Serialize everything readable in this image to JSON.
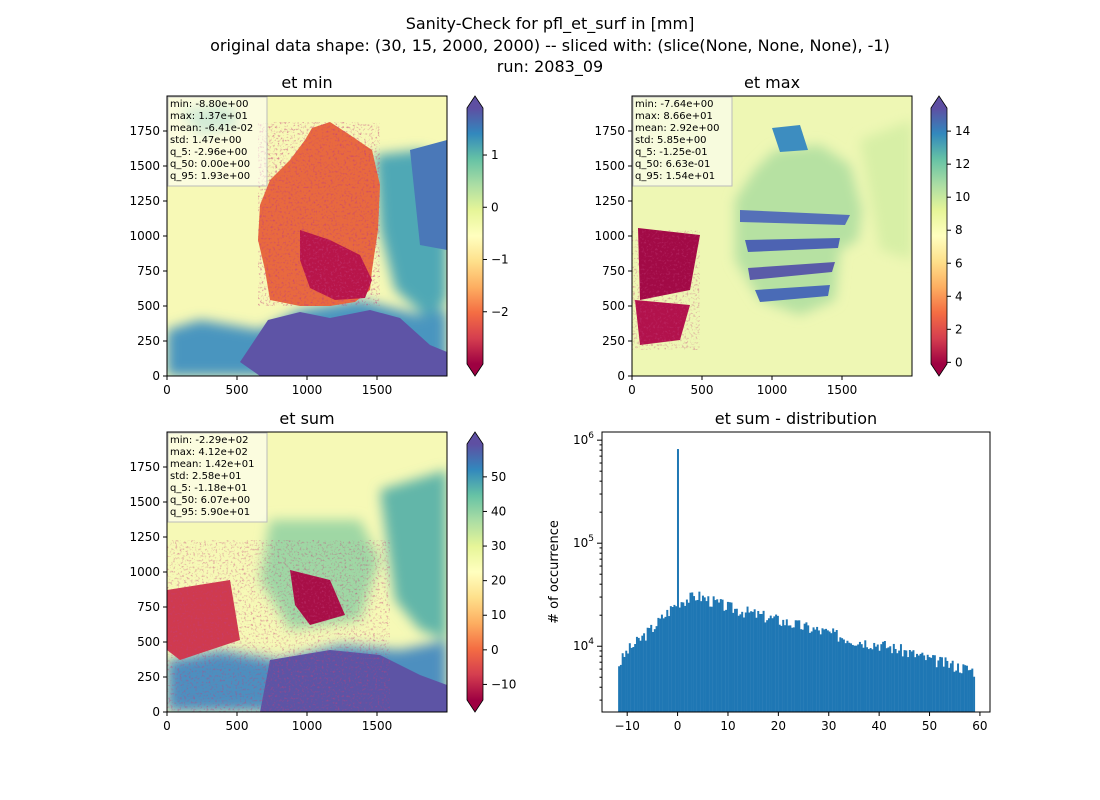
{
  "figure": {
    "suptitle_line1": "Sanity-Check for pfl_et_surf in [mm]",
    "suptitle_line2": "original data shape: (30, 15, 2000, 2000) -- sliced with: (slice(None, None, None), -1)",
    "suptitle_line3": "run: 2083_09"
  },
  "chart_data": [
    {
      "type": "heatmap",
      "title": "et min",
      "cmap": "Spectral",
      "colorbar_range": [
        -3.0,
        1.9
      ],
      "colorbar_ticks": [
        "−2",
        "−1",
        "0",
        "1"
      ],
      "xlim": [
        0,
        2000
      ],
      "ylim": [
        0,
        2000
      ],
      "xticks": [
        "0",
        "500",
        "1000",
        "1500"
      ],
      "yticks": [
        "0",
        "250",
        "500",
        "750",
        "1000",
        "1250",
        "1500",
        "1750"
      ],
      "stats": [
        "min: -8.80e+00",
        "max: 1.37e+01",
        "mean: -6.41e-02",
        "std: 1.47e+00",
        "q_5: -2.96e+00",
        "q_50: 0.00e+00",
        "q_95: 1.93e+00"
      ]
    },
    {
      "type": "heatmap",
      "title": "et max",
      "cmap": "Spectral",
      "colorbar_range": [
        -0.1,
        15.4
      ],
      "colorbar_ticks": [
        "0",
        "2",
        "4",
        "6",
        "8",
        "10",
        "12",
        "14"
      ],
      "xlim": [
        0,
        2000
      ],
      "ylim": [
        0,
        2000
      ],
      "xticks": [
        "0",
        "500",
        "1000",
        "1500"
      ],
      "yticks": [
        "0",
        "250",
        "500",
        "750",
        "1000",
        "1250",
        "1500",
        "1750"
      ],
      "stats": [
        "min: -7.64e+00",
        "max: 8.66e+01",
        "mean: 2.92e+00",
        "std: 5.85e+00",
        "q_5: -1.25e-01",
        "q_50: 6.63e-01",
        "q_95: 1.54e+01"
      ]
    },
    {
      "type": "heatmap",
      "title": "et sum",
      "cmap": "Spectral",
      "colorbar_range": [
        -14.5,
        59.5
      ],
      "colorbar_ticks": [
        "−10",
        "0",
        "10",
        "20",
        "30",
        "40",
        "50"
      ],
      "xlim": [
        0,
        2000
      ],
      "ylim": [
        0,
        2000
      ],
      "xticks": [
        "0",
        "500",
        "1000",
        "1500"
      ],
      "yticks": [
        "0",
        "250",
        "500",
        "750",
        "1000",
        "1250",
        "1500",
        "1750"
      ],
      "stats": [
        "min: -2.29e+02",
        "max: 4.12e+02",
        "mean: 1.42e+01",
        "std: 2.58e+01",
        "q_5: -1.18e+01",
        "q_50: 6.07e+00",
        "q_95: 5.90e+01"
      ]
    },
    {
      "type": "bar",
      "title": "et sum - distribution",
      "ylabel": "# of occurrence",
      "xlabel": "",
      "yscale": "log",
      "xlim": [
        -15,
        62
      ],
      "ylim": [
        2300,
        1200000
      ],
      "xticks": [
        "−10",
        "0",
        "10",
        "20",
        "30",
        "40",
        "50",
        "60"
      ],
      "color": "#1f77b4",
      "hist_range": [
        -11.8,
        59.0
      ],
      "spike": {
        "x": 0,
        "count": 820000
      },
      "profile_points": [
        [
          -11.8,
          6500
        ],
        [
          -10,
          9000
        ],
        [
          -5,
          15000
        ],
        [
          0,
          27000
        ],
        [
          4,
          31000
        ],
        [
          10,
          24000
        ],
        [
          20,
          18000
        ],
        [
          25,
          15500
        ],
        [
          30,
          13500
        ],
        [
          35,
          11500
        ],
        [
          40,
          10500
        ],
        [
          45,
          9000
        ],
        [
          50,
          7500
        ],
        [
          55,
          6500
        ],
        [
          59,
          5800
        ]
      ]
    }
  ]
}
